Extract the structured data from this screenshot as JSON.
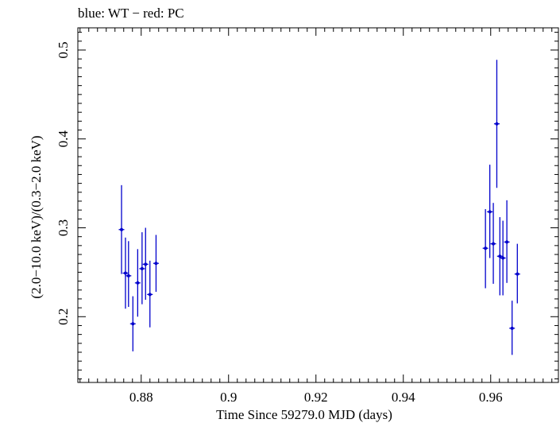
{
  "chart_data": {
    "type": "scatter",
    "title": "blue: WT − red: PC",
    "xlabel": "Time Since 59279.0 MJD (days)",
    "ylabel": "(2.0−10.0 keV)/(0.3−2.0 keV)",
    "xlim": [
      0.8655,
      0.9755
    ],
    "ylim": [
      0.126,
      0.525
    ],
    "x_ticks": [
      {
        "value": 0.88,
        "label": "0.88"
      },
      {
        "value": 0.9,
        "label": "0.9"
      },
      {
        "value": 0.92,
        "label": "0.92"
      },
      {
        "value": 0.94,
        "label": "0.94"
      },
      {
        "value": 0.96,
        "label": "0.96"
      }
    ],
    "y_ticks": [
      {
        "value": 0.2,
        "label": "0.2"
      },
      {
        "value": 0.3,
        "label": "0.3"
      },
      {
        "value": 0.4,
        "label": "0.4"
      },
      {
        "value": 0.5,
        "label": "0.5"
      }
    ],
    "grid": false,
    "series": [
      {
        "name": "WT",
        "color": "#0000cc",
        "points": [
          {
            "x": 0.8755,
            "y": 0.298,
            "ylo": 0.248,
            "yhi": 0.348
          },
          {
            "x": 0.8764,
            "y": 0.249,
            "ylo": 0.209,
            "yhi": 0.289
          },
          {
            "x": 0.8771,
            "y": 0.246,
            "ylo": 0.211,
            "yhi": 0.285
          },
          {
            "x": 0.8781,
            "y": 0.192,
            "ylo": 0.161,
            "yhi": 0.223
          },
          {
            "x": 0.8792,
            "y": 0.238,
            "ylo": 0.2,
            "yhi": 0.276
          },
          {
            "x": 0.8802,
            "y": 0.254,
            "ylo": 0.214,
            "yhi": 0.295
          },
          {
            "x": 0.881,
            "y": 0.259,
            "ylo": 0.219,
            "yhi": 0.3
          },
          {
            "x": 0.882,
            "y": 0.225,
            "ylo": 0.188,
            "yhi": 0.263
          },
          {
            "x": 0.8834,
            "y": 0.26,
            "ylo": 0.228,
            "yhi": 0.292
          },
          {
            "x": 0.9588,
            "y": 0.277,
            "ylo": 0.232,
            "yhi": 0.321
          },
          {
            "x": 0.9598,
            "y": 0.318,
            "ylo": 0.266,
            "yhi": 0.371
          },
          {
            "x": 0.9606,
            "y": 0.282,
            "ylo": 0.237,
            "yhi": 0.328
          },
          {
            "x": 0.9614,
            "y": 0.417,
            "ylo": 0.345,
            "yhi": 0.489
          },
          {
            "x": 0.9621,
            "y": 0.268,
            "ylo": 0.224,
            "yhi": 0.312
          },
          {
            "x": 0.9628,
            "y": 0.266,
            "ylo": 0.224,
            "yhi": 0.308
          },
          {
            "x": 0.9637,
            "y": 0.284,
            "ylo": 0.238,
            "yhi": 0.331
          },
          {
            "x": 0.9649,
            "y": 0.187,
            "ylo": 0.157,
            "yhi": 0.218
          },
          {
            "x": 0.9661,
            "y": 0.248,
            "ylo": 0.215,
            "yhi": 0.282
          }
        ]
      }
    ]
  }
}
